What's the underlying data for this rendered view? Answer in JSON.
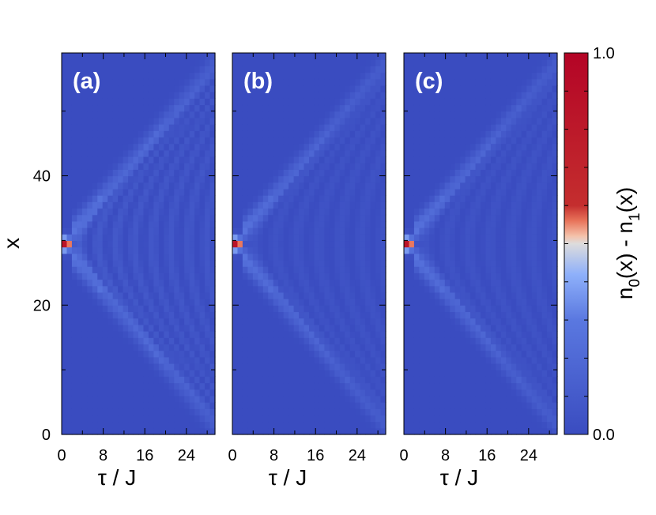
{
  "chart_data": {
    "type": "heatmap",
    "panels": [
      {
        "label": "(a)",
        "xlabel": "τ / J",
        "xticks": [
          "0",
          "8",
          "16",
          "24"
        ],
        "xlim": [
          0,
          29.5
        ],
        "ylim": [
          0,
          59
        ],
        "front_speed": 0.95,
        "oscillating_interior": true
      },
      {
        "label": "(b)",
        "xlabel": "τ / J",
        "xticks": [
          "0",
          "8",
          "16",
          "24"
        ],
        "xlim": [
          0,
          29.5
        ],
        "ylim": [
          0,
          59
        ],
        "front_speed": 0.95,
        "oscillating_interior": false
      },
      {
        "label": "(c)",
        "xlabel": "τ / J",
        "xticks": [
          "0",
          "8",
          "16",
          "24"
        ],
        "xlim": [
          0,
          29.5
        ],
        "ylim": [
          0,
          59
        ],
        "front_speed": 0.95,
        "oscillating_interior": false
      }
    ],
    "ylabel": "x",
    "yticks": [
      "0",
      "20",
      "40"
    ],
    "source_position_x": 29.5,
    "colorbar": {
      "label": "n0(x) - n1(x)",
      "label_parts": {
        "n": "n",
        "sub0": "0",
        "mid": "(x) - n",
        "sub1": "1",
        "end": "(x)"
      },
      "min_label": "0.0",
      "max_label": "1.0",
      "range": [
        0,
        1
      ],
      "colormap": [
        "#3a4cc0",
        "#6a8ff0",
        "#a9c4fc",
        "#dddcdc",
        "#f6b397",
        "#e2694f",
        "#b40426"
      ]
    }
  }
}
